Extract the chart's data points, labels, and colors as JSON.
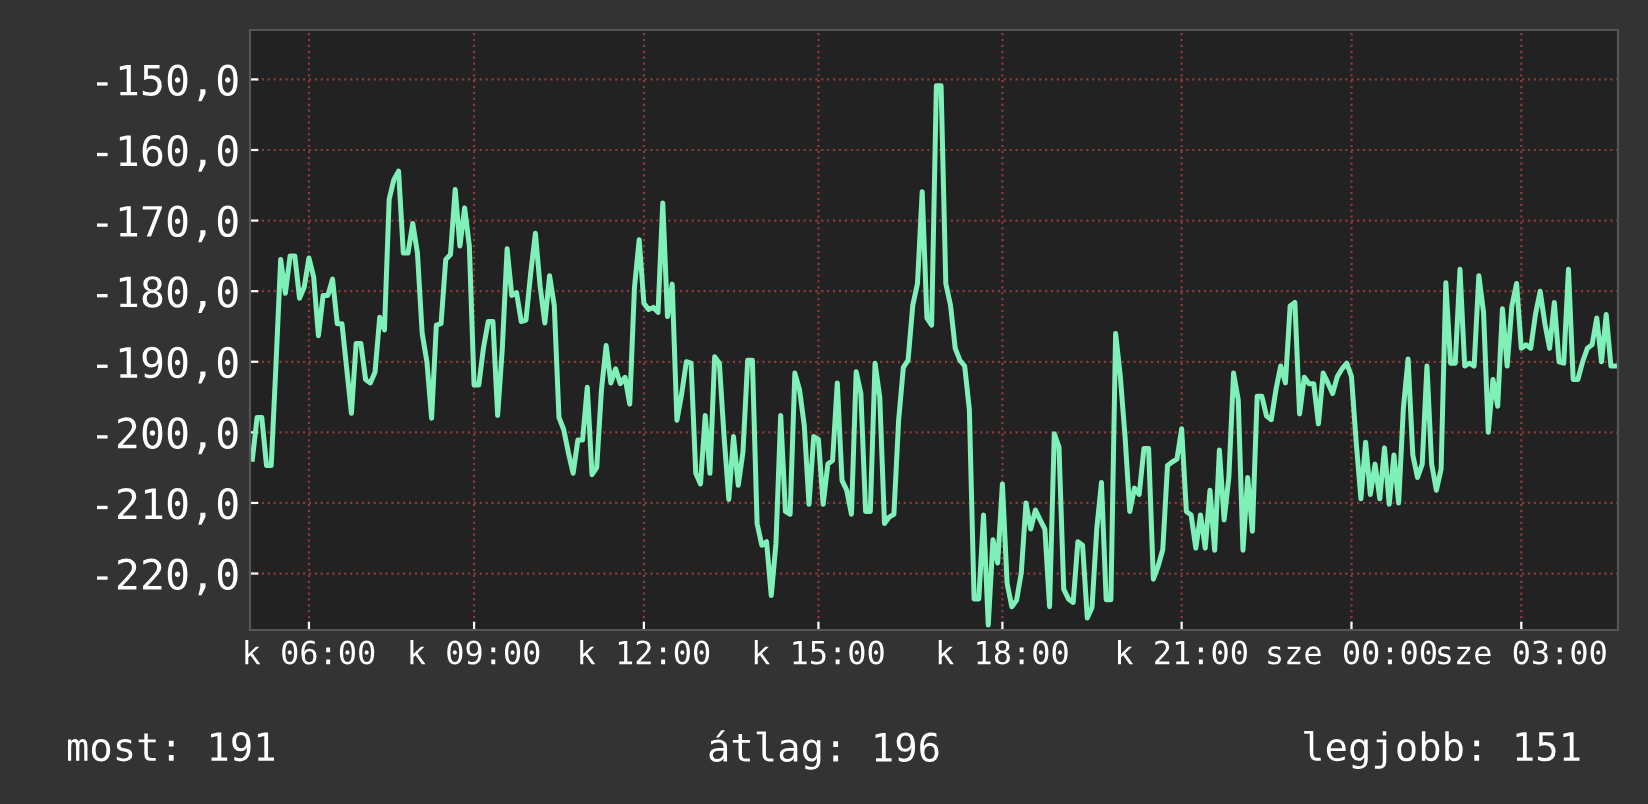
{
  "chart_data": {
    "type": "line",
    "series": [
      {
        "color": "#7ff0b8",
        "values": [
          -203.8,
          -197.9,
          -197.9,
          -204.7,
          -204.7,
          -190.5,
          -175.5,
          -180.3,
          -175,
          -175,
          -181,
          -179.4,
          -175.3,
          -178,
          -186.3,
          -180.6,
          -180.6,
          -178.3,
          -184.6,
          -184.6,
          -191,
          -197.3,
          -187.4,
          -187.4,
          -192.5,
          -193,
          -191.5,
          -183.7,
          -185.5,
          -167,
          -164.2,
          -163,
          -174.6,
          -174.6,
          -170.4,
          -174.6,
          -186,
          -190,
          -198,
          -184.8,
          -184.6,
          -175.5,
          -174.8,
          -165.6,
          -173.6,
          -168.2,
          -173.6,
          -193.3,
          -193.3,
          -188,
          -184.3,
          -184.3,
          -197.6,
          -188,
          -174,
          -180.6,
          -180.2,
          -184.3,
          -184.1,
          -177.5,
          -171.8,
          -179.3,
          -184.5,
          -177.8,
          -182,
          -197.9,
          -199.6,
          -202.9,
          -205.8,
          -201.1,
          -201.1,
          -193.6,
          -206,
          -205,
          -194,
          -187.7,
          -193,
          -191,
          -193.1,
          -192.2,
          -196,
          -179.5,
          -172.7,
          -181.7,
          -182.6,
          -182.3,
          -183,
          -167.5,
          -183.6,
          -179,
          -198.3,
          -194.6,
          -190,
          -190.2,
          -205.8,
          -207.3,
          -197.6,
          -205.8,
          -189.3,
          -190.2,
          -200.6,
          -209.5,
          -200.6,
          -207.5,
          -202.8,
          -189.8,
          -189.8,
          -212.9,
          -216,
          -215.5,
          -223.1,
          -215.7,
          -197.6,
          -211.2,
          -211.6,
          -191.6,
          -194,
          -199,
          -210.2,
          -200.6,
          -201,
          -210.2,
          -204.5,
          -204,
          -193,
          -206.8,
          -208.2,
          -211.6,
          -191.4,
          -194.5,
          -211.2,
          -211.2,
          -190.2,
          -195,
          -212.9,
          -212,
          -211.6,
          -198.3,
          -190.8,
          -189.8,
          -182,
          -178.9,
          -165.9,
          -183.8,
          -184.8,
          -150.9,
          -150.9,
          -178.9,
          -182,
          -188.1,
          -189.8,
          -190.6,
          -196.8,
          -223.6,
          -223.6,
          -211.7,
          -227.3,
          -215.2,
          -218.5,
          -207.3,
          -221.4,
          -224.7,
          -223.8,
          -219.9,
          -210,
          -213.7,
          -211,
          -212.4,
          -213.7,
          -224.7,
          -200.2,
          -202.1,
          -222.2,
          -223.6,
          -224.1,
          -215.5,
          -216,
          -226.3,
          -224.8,
          -213.7,
          -207.1,
          -223.7,
          -223.7,
          -186,
          -192.1,
          -200.6,
          -211.2,
          -207.9,
          -208.8,
          -202.3,
          -202.3,
          -220.8,
          -219,
          -216.6,
          -204.7,
          -204.2,
          -203.8,
          -199.5,
          -211.2,
          -211.7,
          -216.4,
          -211.7,
          -216.4,
          -208.2,
          -216.7,
          -202.5,
          -212.4,
          -206.4,
          -191.6,
          -195.4,
          -216.7,
          -206.4,
          -214,
          -194.9,
          -194.9,
          -197.7,
          -198.2,
          -193.9,
          -190.6,
          -193,
          -182.1,
          -181.6,
          -197.4,
          -192.2,
          -193.1,
          -193.1,
          -198.8,
          -191.6,
          -193,
          -194.5,
          -192.1,
          -191,
          -190.2,
          -192.1,
          -201.4,
          -209.4,
          -201.4,
          -208.8,
          -204.5,
          -209.4,
          -202.2,
          -210.2,
          -203.2,
          -210,
          -196.6,
          -189.6,
          -203.2,
          -206.4,
          -204.5,
          -190.6,
          -204.5,
          -208.2,
          -205.2,
          -178.8,
          -190.2,
          -190.2,
          -176.9,
          -190.6,
          -190.2,
          -190.6,
          -177.8,
          -183,
          -200,
          -192.5,
          -196.3,
          -182.5,
          -190.6,
          -182.1,
          -178.9,
          -188.1,
          -187.6,
          -188.1,
          -183.3,
          -180,
          -184.6,
          -188.1,
          -181.6,
          -190,
          -190.2,
          -176.9,
          -192.5,
          -192.5,
          -190,
          -188.1,
          -187.6,
          -183.8,
          -190,
          -183.3,
          -190.6,
          -190.6
        ]
      }
    ],
    "ylim": [
      -228,
      -143
    ],
    "categories": [
      null,
      null,
      null,
      null,
      null,
      null,
      null,
      null,
      null,
      null,
      null,
      null,
      "k 06:00",
      null,
      null,
      null,
      null,
      null,
      null,
      null,
      null,
      null,
      null,
      null,
      null,
      null,
      null,
      null,
      null,
      null,
      null,
      null,
      null,
      null,
      null,
      null,
      null,
      null,
      null,
      null,
      null,
      null,
      null,
      null,
      null,
      null,
      null,
      "k 09:00",
      null,
      null,
      null,
      null,
      null,
      null,
      null,
      null,
      null,
      null,
      null,
      null,
      null,
      null,
      null,
      null,
      null,
      null,
      null,
      null,
      null,
      null,
      null,
      null,
      null,
      null,
      null,
      null,
      null,
      null,
      null,
      null,
      null,
      null,
      null,
      "k 12:00",
      null,
      null,
      null,
      null,
      null,
      null,
      null,
      null,
      null,
      null,
      null,
      null,
      null,
      null,
      null,
      null,
      null,
      null,
      null,
      null,
      null,
      null,
      null,
      null,
      null,
      null,
      null,
      null,
      null,
      null,
      null,
      null,
      null,
      null,
      null,
      null,
      "k 15:00",
      null,
      null,
      null,
      null,
      null,
      null,
      null,
      null,
      null,
      null,
      null,
      null,
      null,
      null,
      null,
      null,
      null,
      null,
      null,
      null,
      null,
      null,
      null,
      null,
      null,
      null,
      null,
      null,
      null,
      null,
      null,
      null,
      null,
      null,
      null,
      null,
      null,
      null,
      "k 18:00",
      null,
      null,
      null,
      null,
      null,
      null,
      null,
      null,
      null,
      null,
      null,
      null,
      null,
      null,
      null,
      null,
      null,
      null,
      null,
      null,
      null,
      null,
      null,
      null,
      null,
      null,
      null,
      null,
      null,
      null,
      null,
      null,
      null,
      null,
      null,
      null,
      null,
      "k 21:00",
      null,
      null,
      null,
      null,
      null,
      null,
      null,
      null,
      null,
      null,
      null,
      null,
      null,
      null,
      null,
      null,
      null,
      null,
      null,
      null,
      null,
      null,
      null,
      null,
      null,
      null,
      null,
      null,
      null,
      null,
      null,
      null,
      null,
      null,
      null,
      "sze 00:00",
      null,
      null,
      null,
      null,
      null,
      null,
      null,
      null,
      null,
      null,
      null,
      null,
      null,
      null,
      null,
      null,
      null,
      null,
      null,
      null,
      null,
      null,
      null,
      null,
      null,
      null,
      null,
      null,
      null,
      null,
      null,
      null,
      null,
      null,
      null,
      "sze 03:00",
      null,
      null,
      null,
      null,
      null,
      null,
      null,
      null,
      null,
      null,
      null,
      null,
      null,
      null,
      null,
      null,
      null,
      null,
      null,
      null
    ],
    "yticks": [
      {
        "value": -150,
        "label": "-150,0"
      },
      {
        "value": -160,
        "label": "-160,0"
      },
      {
        "value": -170,
        "label": "-170,0"
      },
      {
        "value": -180,
        "label": "-180,0"
      },
      {
        "value": -190,
        "label": "-190,0"
      },
      {
        "value": -200,
        "label": "-200,0"
      },
      {
        "value": -210,
        "label": "-210,0"
      },
      {
        "value": -220,
        "label": "-220,0"
      }
    ],
    "grid": true,
    "line_style": "solid",
    "annotations": [
      "most: 191",
      "átlag: 196",
      "legjobb: 151"
    ]
  }
}
